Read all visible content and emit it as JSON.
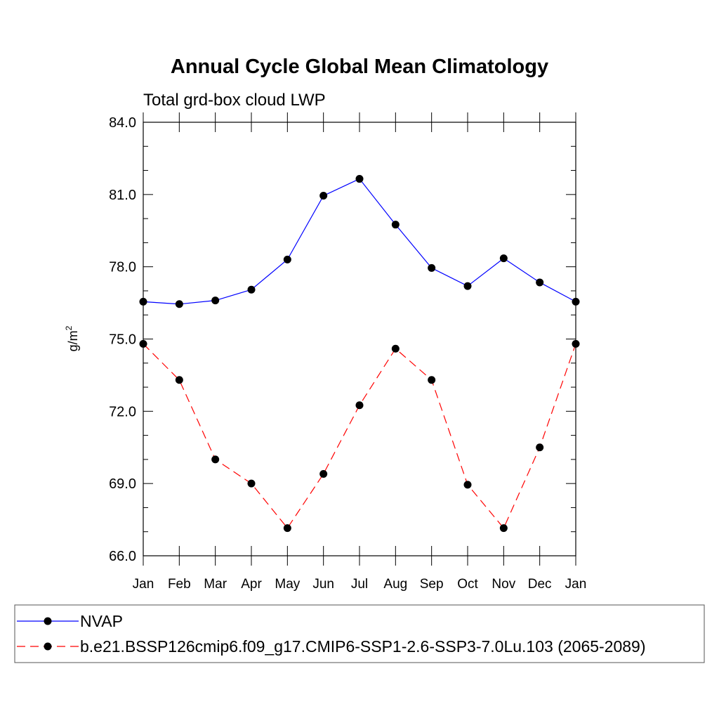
{
  "chart_data": {
    "type": "line",
    "title": "Annual Cycle Global Mean Climatology",
    "subtitle": "Total grd-box cloud LWP",
    "ylabel_base": "g/m",
    "ylabel_sup": "2",
    "categories": [
      "Jan",
      "Feb",
      "Mar",
      "Apr",
      "May",
      "Jun",
      "Jul",
      "Aug",
      "Sep",
      "Oct",
      "Nov",
      "Dec",
      "Jan"
    ],
    "ylim": [
      66.0,
      84.0
    ],
    "yticks": [
      "66.0",
      "69.0",
      "72.0",
      "75.0",
      "78.0",
      "81.0",
      "84.0"
    ],
    "legend_position": "bottom",
    "series": [
      {
        "name": "NVAP",
        "color": "#0000ff",
        "dash": "solid",
        "values": [
          76.55,
          76.45,
          76.6,
          77.05,
          78.3,
          80.95,
          81.65,
          79.75,
          77.95,
          77.2,
          78.35,
          77.35,
          76.55
        ]
      },
      {
        "name": "b.e21.BSSP126cmip6.f09_g17.CMIP6-SSP1-2.6-SSP3-7.0Lu.103 (2065-2089)",
        "color": "#ff0000",
        "dash": "dashed",
        "values": [
          74.8,
          73.3,
          70.0,
          69.0,
          67.15,
          69.4,
          72.25,
          74.6,
          73.3,
          68.95,
          67.15,
          70.5,
          74.8
        ]
      }
    ]
  }
}
